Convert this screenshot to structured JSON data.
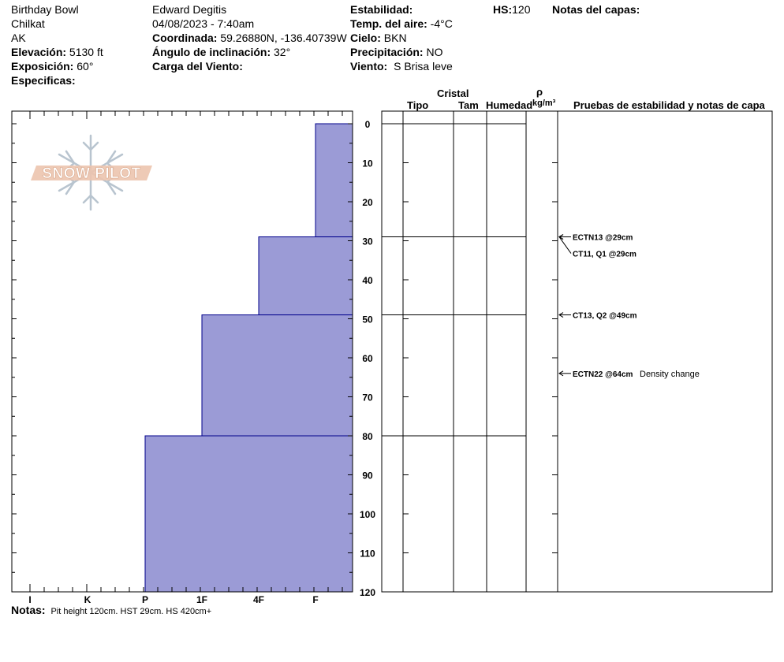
{
  "header": {
    "location": "Birthday Bowl",
    "range": "Chilkat",
    "state": "AK",
    "elevation_label": "Elevación:",
    "elevation_value": "5130 ft",
    "aspect_label": "Exposición:",
    "aspect_value": "60°",
    "specifics_label": "Especificas:",
    "observer": "Edward Degitis",
    "datetime": "04/08/2023 - 7:40am",
    "coord_label": "Coordinada:",
    "coord_value": "59.26880N, -136.40739W",
    "slope_label": "Ángulo de inclinación:",
    "slope_value": "32°",
    "wind_load_label": "Carga del Viento:",
    "stability_label": "Estabilidad:",
    "air_temp_label": "Temp. del aire:",
    "air_temp_value": "-4°C",
    "sky_label": "Cielo:",
    "sky_value": "BKN",
    "precip_label": "Precipitación:",
    "precip_value": "NO",
    "wind_label": "Viento:",
    "wind_value": "S Brisa leve",
    "hs_label": "HS:",
    "hs_value": "120",
    "layer_notes_label": "Notas del capas:"
  },
  "logo": {
    "text": "SNOW PILOT"
  },
  "table_headers": {
    "crystal": "Cristal",
    "type": "Tipo",
    "size": "Tam",
    "moisture": "Humedad",
    "density_symbol": "ρ",
    "density_unit": "kg/m³",
    "tests": "Pruebas de estabilidad y notas de capa"
  },
  "notes": {
    "label": "Notas:",
    "text": "Pit height 120cm. HST 29cm. HS 420cm+"
  },
  "colors": {
    "hardness_fill": "#9b9bd6",
    "hardness_stroke": "#00008b"
  },
  "chart_data": {
    "type": "bar",
    "title": "",
    "xlabel": "",
    "ylabel": "",
    "hardness_categories": [
      "I",
      "K",
      "P",
      "1F",
      "4F",
      "F"
    ],
    "depth_ticks": [
      0,
      10,
      20,
      30,
      40,
      50,
      60,
      70,
      80,
      90,
      100,
      110,
      120
    ],
    "ylim": [
      0,
      120
    ],
    "layers": [
      {
        "top": 0,
        "bottom": 29,
        "hardness": "F"
      },
      {
        "top": 29,
        "bottom": 49,
        "hardness": "4F"
      },
      {
        "top": 49,
        "bottom": 80,
        "hardness": "1F"
      },
      {
        "top": 80,
        "bottom": 120,
        "hardness": "P"
      }
    ],
    "layer_boundaries": [
      0,
      29,
      49,
      80
    ],
    "tests": [
      {
        "depth": 29,
        "label": "ECTN13 @29cm",
        "note": ""
      },
      {
        "depth": 29,
        "label": "CT11, Q1 @29cm",
        "note": ""
      },
      {
        "depth": 49,
        "label": "CT13, Q2 @49cm",
        "note": ""
      },
      {
        "depth": 64,
        "label": "ECTN22 @64cm",
        "note": "Density change"
      }
    ]
  }
}
